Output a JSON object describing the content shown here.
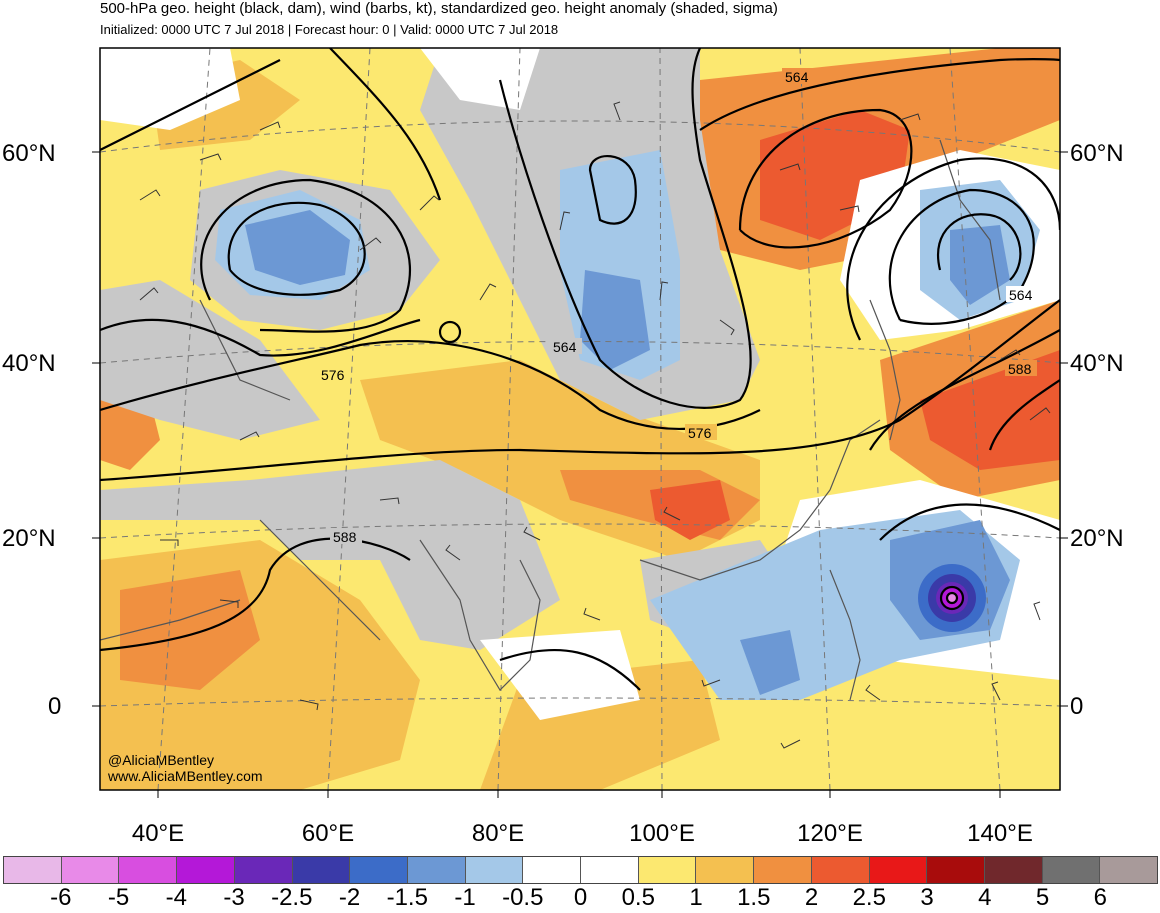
{
  "header": {
    "title": "500-hPa geo. height (black, dam), wind (barbs, kt), standardized geo. height anomaly (shaded, sigma)",
    "subtitle": "Initialized: 0000 UTC 7 Jul 2018 | Forecast hour: 0 | Valid: 0000 UTC 7 Jul 2018"
  },
  "map": {
    "lat_labels": [
      "60°N",
      "40°N",
      "20°N",
      "0"
    ],
    "lon_labels": [
      "40°E",
      "60°E",
      "80°E",
      "100°E",
      "120°E",
      "140°E"
    ],
    "contour_labels": [
      "564",
      "564",
      "564",
      "576",
      "576",
      "588",
      "588"
    ],
    "credit": [
      "@AliciaMBentley",
      "www.AliciaMBentley.com"
    ]
  },
  "legend": {
    "colors": [
      "#e8b8e8",
      "#e88ae8",
      "#d84ee0",
      "#b418d8",
      "#6a28b8",
      "#3a3aa8",
      "#3c6cc8",
      "#6c98d4",
      "#a4c8e8",
      "#ffffff",
      "#ffffff",
      "#fce870",
      "#f4c050",
      "#f09040",
      "#ec5a30",
      "#e81818",
      "#a80c0c",
      "#70282c",
      "#707070",
      "#a89a9a"
    ],
    "ticks": [
      "-6",
      "-5",
      "-4",
      "-3",
      "-2.5",
      "-2",
      "-1.5",
      "-1",
      "-0.5",
      "0",
      "0.5",
      "1",
      "1.5",
      "2",
      "2.5",
      "3",
      "4",
      "5",
      "6"
    ]
  }
}
